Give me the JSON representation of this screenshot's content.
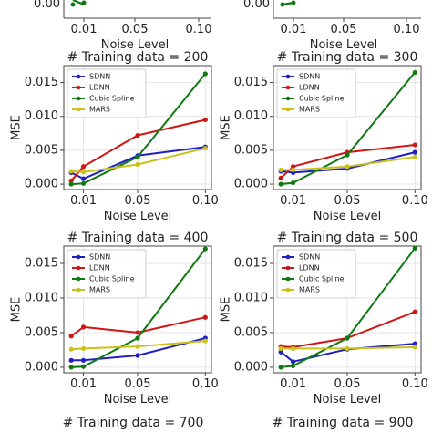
{
  "colors": {
    "SDNN": "#1f1fc2",
    "LDNN": "#d01515",
    "Cubic Spline": "#0f7a0f",
    "MARS": "#c9c21a",
    "grid": "#e4e4e4",
    "axis": "#444444"
  },
  "shared": {
    "xlabel": "Noise Level",
    "ylabel": "MSE",
    "xticks": [
      "0.01",
      "0.05",
      "0.10"
    ],
    "yticks": [
      "0.000",
      "0.005",
      "0.010",
      "0.015"
    ],
    "legend": [
      "SDNN",
      "LDNN",
      "Cubic Spline",
      "MARS"
    ]
  },
  "partial_top": {
    "ytick_left": "0.00",
    "ytick_right": "0.00",
    "xticks": [
      "0.01",
      "0.05",
      "0.10"
    ],
    "xlabel": "Noise Level"
  },
  "partial_bottom": {
    "titles": [
      "# Training data = 700",
      "# Training data = 900"
    ]
  },
  "chart_data": [
    {
      "type": "line",
      "title": "# Training data = 200",
      "xlabel": "Noise Level",
      "ylabel": "MSE",
      "x": [
        0.001,
        0.01,
        0.05,
        0.1
      ],
      "xlim": [
        -0.0045,
        0.1045
      ],
      "ylim": [
        -0.0008,
        0.0175
      ],
      "legend_position": "top-left",
      "series": [
        {
          "name": "SDNN",
          "values": [
            0.0017,
            0.0008,
            0.0042,
            0.0055
          ]
        },
        {
          "name": "LDNN",
          "values": [
            0.0005,
            0.0026,
            0.0072,
            0.0095
          ]
        },
        {
          "name": "Cubic Spline",
          "values": [
            0.0,
            0.0001,
            0.004,
            0.0163
          ]
        },
        {
          "name": "MARS",
          "values": [
            0.0019,
            0.0018,
            0.0029,
            0.0053
          ]
        }
      ]
    },
    {
      "type": "line",
      "title": "# Training data = 300",
      "xlabel": "Noise Level",
      "ylabel": "MSE",
      "x": [
        0.001,
        0.01,
        0.05,
        0.1
      ],
      "xlim": [
        -0.0045,
        0.1045
      ],
      "ylim": [
        -0.0008,
        0.0175
      ],
      "legend_position": "top-left",
      "series": [
        {
          "name": "SDNN",
          "values": [
            0.0019,
            0.0017,
            0.0023,
            0.0047
          ]
        },
        {
          "name": "LDNN",
          "values": [
            0.0009,
            0.0026,
            0.0047,
            0.0058
          ]
        },
        {
          "name": "Cubic Spline",
          "values": [
            0.0,
            0.0002,
            0.0043,
            0.0165
          ]
        },
        {
          "name": "MARS",
          "values": [
            0.0021,
            0.0021,
            0.0026,
            0.004
          ]
        }
      ]
    },
    {
      "type": "line",
      "title": "# Training data = 400",
      "xlabel": "Noise Level",
      "ylabel": "MSE",
      "x": [
        0.001,
        0.01,
        0.05,
        0.1
      ],
      "xlim": [
        -0.0045,
        0.1045
      ],
      "ylim": [
        -0.0008,
        0.0175
      ],
      "legend_position": "top-left",
      "series": [
        {
          "name": "SDNN",
          "values": [
            0.001,
            0.001,
            0.0017,
            0.0042
          ]
        },
        {
          "name": "LDNN",
          "values": [
            0.0045,
            0.0058,
            0.005,
            0.0072
          ]
        },
        {
          "name": "Cubic Spline",
          "values": [
            0.0,
            0.0001,
            0.0042,
            0.0171
          ]
        },
        {
          "name": "MARS",
          "values": [
            0.0026,
            0.0027,
            0.003,
            0.0038
          ]
        }
      ]
    },
    {
      "type": "line",
      "title": "# Training data = 500",
      "xlabel": "Noise Level",
      "ylabel": "MSE",
      "x": [
        0.001,
        0.01,
        0.05,
        0.1
      ],
      "xlim": [
        -0.0045,
        0.1045
      ],
      "ylim": [
        -0.0008,
        0.0175
      ],
      "legend_position": "top-left",
      "series": [
        {
          "name": "SDNN",
          "values": [
            0.0022,
            0.0008,
            0.0026,
            0.0034
          ]
        },
        {
          "name": "LDNN",
          "values": [
            0.003,
            0.0029,
            0.0042,
            0.008
          ]
        },
        {
          "name": "Cubic Spline",
          "values": [
            0.0,
            0.0002,
            0.0042,
            0.0172
          ]
        },
        {
          "name": "MARS",
          "values": [
            0.0027,
            0.0027,
            0.0027,
            0.0029
          ]
        }
      ]
    }
  ]
}
